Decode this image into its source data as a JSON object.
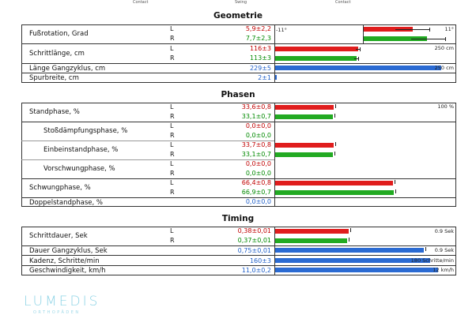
{
  "top_labels": [
    "Contact",
    "Swing",
    "Contact"
  ],
  "sections": {
    "geometrie": "Geometrie",
    "phasen": "Phasen",
    "timing": "Timing"
  },
  "scales": {
    "fuss_min": "-11°",
    "fuss_max": "11°",
    "schritt": "250 cm",
    "gang": "250 cm",
    "phase": "100 %",
    "dauer1": "0.9 Sek",
    "dauer2": "0.9 Sek",
    "kadenz": "180 Schritte/min",
    "geschw": "12 km/h"
  },
  "rows": {
    "fuss": {
      "label": "Fußrotation, Grad",
      "L": "5,9±2,2",
      "R": "7,7±2,3",
      "L_mean": 5.9,
      "R_mean": 7.7
    },
    "schrittlaenge": {
      "label": "Schrittlänge, cm",
      "L": "116±3",
      "R": "113±3",
      "L_mean": 116,
      "R_mean": 113
    },
    "gangzyklus": {
      "label": "Länge Gangzyklus, cm",
      "B": "229±5",
      "B_mean": 229
    },
    "spurbreite": {
      "label": "Spurbreite, cm",
      "B": "2±1",
      "B_mean": 2
    },
    "standphase": {
      "label": "Standphase, %",
      "L": "33,6±0,8",
      "R": "33,1±0,7",
      "L_mean": 33.6,
      "R_mean": 33.1
    },
    "stoss": {
      "label": "Stoßdämpfungsphase, %",
      "L": "0,0±0,0",
      "R": "0,0±0,0",
      "L_mean": 0,
      "R_mean": 0
    },
    "einbein": {
      "label": "Einbeinstandphase, %",
      "L": "33,7±0,8",
      "R": "33,1±0,7",
      "L_mean": 33.7,
      "R_mean": 33.1
    },
    "vorschwung": {
      "label": "Vorschwungphase, %",
      "L": "0,0±0,0",
      "R": "0,0±0,0",
      "L_mean": 0,
      "R_mean": 0
    },
    "schwung": {
      "label": "Schwungphase, %",
      "L": "66,4±0,8",
      "R": "66,9±0,7",
      "L_mean": 66.4,
      "R_mean": 66.9
    },
    "doppel": {
      "label": "Doppelstandphase, %",
      "B": "0,0±0,0",
      "B_mean": 0
    },
    "schrittdauer": {
      "label": "Schrittdauer, Sek",
      "L": "0,38±0,01",
      "R": "0,37±0,01",
      "L_mean": 0.38,
      "R_mean": 0.37
    },
    "dauergang": {
      "label": "Dauer Gangzyklus, Sek",
      "B": "0,75±0,01",
      "B_mean": 0.75
    },
    "kadenz": {
      "label": "Kadenz, Schritte/min",
      "B": "160±3",
      "B_mean": 160
    },
    "geschw": {
      "label": "Geschwindigkeit, km/h",
      "B": "11,0±0,2",
      "B_mean": 11.0
    }
  },
  "side_labels": {
    "L": "L",
    "R": "R"
  },
  "logo": {
    "name": "LUMEDIS",
    "sub": "ORTHOPÄDEN"
  }
}
